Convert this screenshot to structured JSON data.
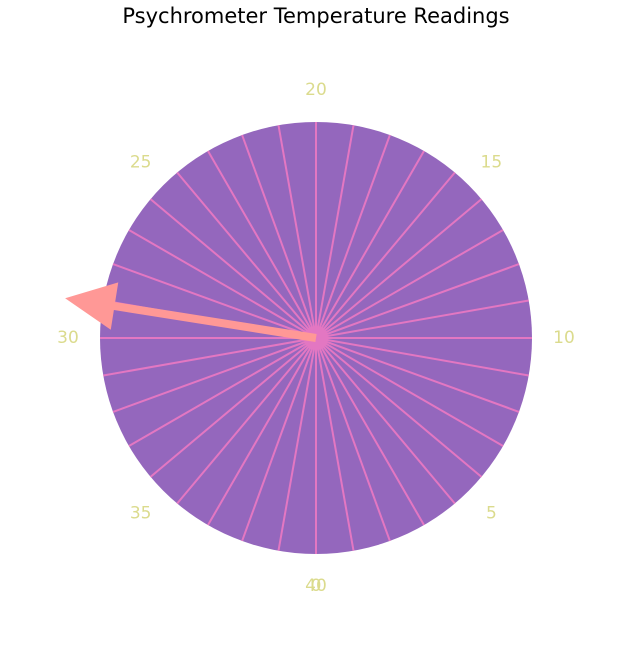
{
  "chart_data": {
    "type": "gauge",
    "title": "Psychrometer Temperature Readings",
    "scale": {
      "min": 0,
      "max": 40,
      "direction": "counterclockwise",
      "zero_position": "bottom"
    },
    "tick_labels": [
      "0",
      "5",
      "10",
      "15",
      "20",
      "25",
      "30",
      "35",
      "40"
    ],
    "tick_values": [
      0,
      5,
      10,
      15,
      20,
      25,
      30,
      35,
      40
    ],
    "segments": 36,
    "needle": {
      "value": 29
    },
    "colors": {
      "dial_fill": "#9467bd",
      "segment_lines": "#e377c2",
      "hub": "#e377c2",
      "needle": "#ff9896",
      "tick_labels": "#dbdb8d"
    }
  }
}
